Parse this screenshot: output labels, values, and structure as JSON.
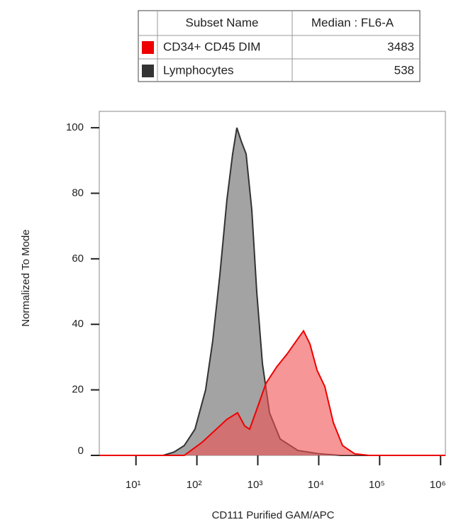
{
  "chart_data": {
    "type": "area",
    "x_label": "CD111 Purified GAM/APC",
    "y_label": "Normalized To Mode",
    "legend_header": [
      "Subset Name",
      "Median : FL6-A"
    ],
    "xscale": "log",
    "xlim": [
      2.5,
      1200000
    ],
    "xticks": [
      {
        "value": 10,
        "label": "10¹"
      },
      {
        "value": 100,
        "label": "10²"
      },
      {
        "value": 1000,
        "label": "10³"
      },
      {
        "value": 10000,
        "label": "10⁴"
      },
      {
        "value": 100000,
        "label": "10⁵"
      },
      {
        "value": 1000000,
        "label": "10⁶"
      }
    ],
    "ylim": [
      0,
      105
    ],
    "yticks": [
      0,
      20,
      40,
      60,
      80,
      100
    ],
    "series": [
      {
        "name": "Lymphocytes",
        "color": "#333333",
        "fill": "#999999",
        "median": 538,
        "x": [
          2.5,
          28,
          42,
          62,
          93,
          139,
          182,
          238,
          311,
          386,
          453,
          532,
          643,
          796,
          960,
          1191,
          1557,
          2328,
          4550,
          10160,
          22700,
          1200000
        ],
        "values": [
          0,
          0,
          1,
          3,
          8,
          20,
          35,
          55,
          78,
          92,
          100,
          96,
          92,
          75,
          50,
          28,
          13,
          5,
          1.5,
          0.5,
          0,
          0
        ]
      },
      {
        "name": "CD34+ CD45 DIM",
        "color": "#ee0000",
        "fill": "#f05050",
        "median": 3483,
        "x": [
          2.5,
          62,
          122,
          208,
          311,
          466,
          608,
          734,
          960,
          1362,
          2037,
          3041,
          4306,
          5630,
          7177,
          9380,
          12590,
          17380,
          24600,
          38800,
          66400,
          1200000
        ],
        "values": [
          0,
          0,
          4,
          8,
          11,
          13,
          9,
          8,
          14,
          22,
          27,
          31,
          35,
          38,
          34,
          26,
          21,
          10,
          3,
          0.5,
          0,
          0
        ]
      }
    ]
  }
}
